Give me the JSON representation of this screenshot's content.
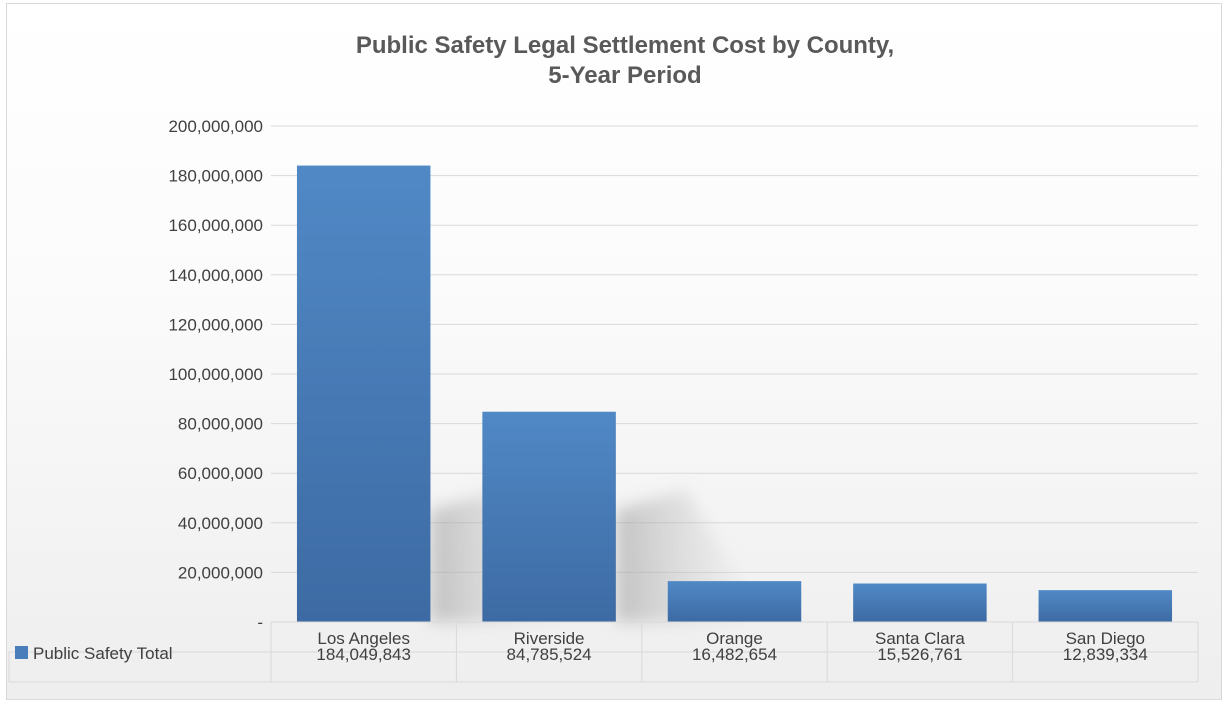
{
  "chart_data": {
    "type": "bar",
    "title_lines": [
      "Public Safety Legal Settlement Cost by County,",
      "5-Year Period"
    ],
    "categories": [
      "Los Angeles",
      "Riverside",
      "Orange",
      "Santa Clara",
      "San Diego"
    ],
    "series": [
      {
        "name": "Public Safety Total",
        "values": [
          184049843,
          84785524,
          16482654,
          15526761,
          12839334
        ],
        "value_labels": [
          "184,049,843",
          "84,785,524",
          "16,482,654",
          "15,526,761",
          "12,839,334"
        ],
        "color": "#4a7ebb"
      }
    ],
    "ylim": [
      0,
      200000000
    ],
    "yticks": [
      {
        "value": 0,
        "label": "-"
      },
      {
        "value": 20000000,
        "label": "20,000,000"
      },
      {
        "value": 40000000,
        "label": "40,000,000"
      },
      {
        "value": 60000000,
        "label": "60,000,000"
      },
      {
        "value": 80000000,
        "label": "80,000,000"
      },
      {
        "value": 100000000,
        "label": "100,000,000"
      },
      {
        "value": 120000000,
        "label": "120,000,000"
      },
      {
        "value": 140000000,
        "label": "140,000,000"
      },
      {
        "value": 160000000,
        "label": "160,000,000"
      },
      {
        "value": 180000000,
        "label": "180,000,000"
      },
      {
        "value": 200000000,
        "label": "200,000,000"
      }
    ],
    "grid": true,
    "legend_placement": "data-table",
    "gridline_color": "#d9d9d9"
  }
}
